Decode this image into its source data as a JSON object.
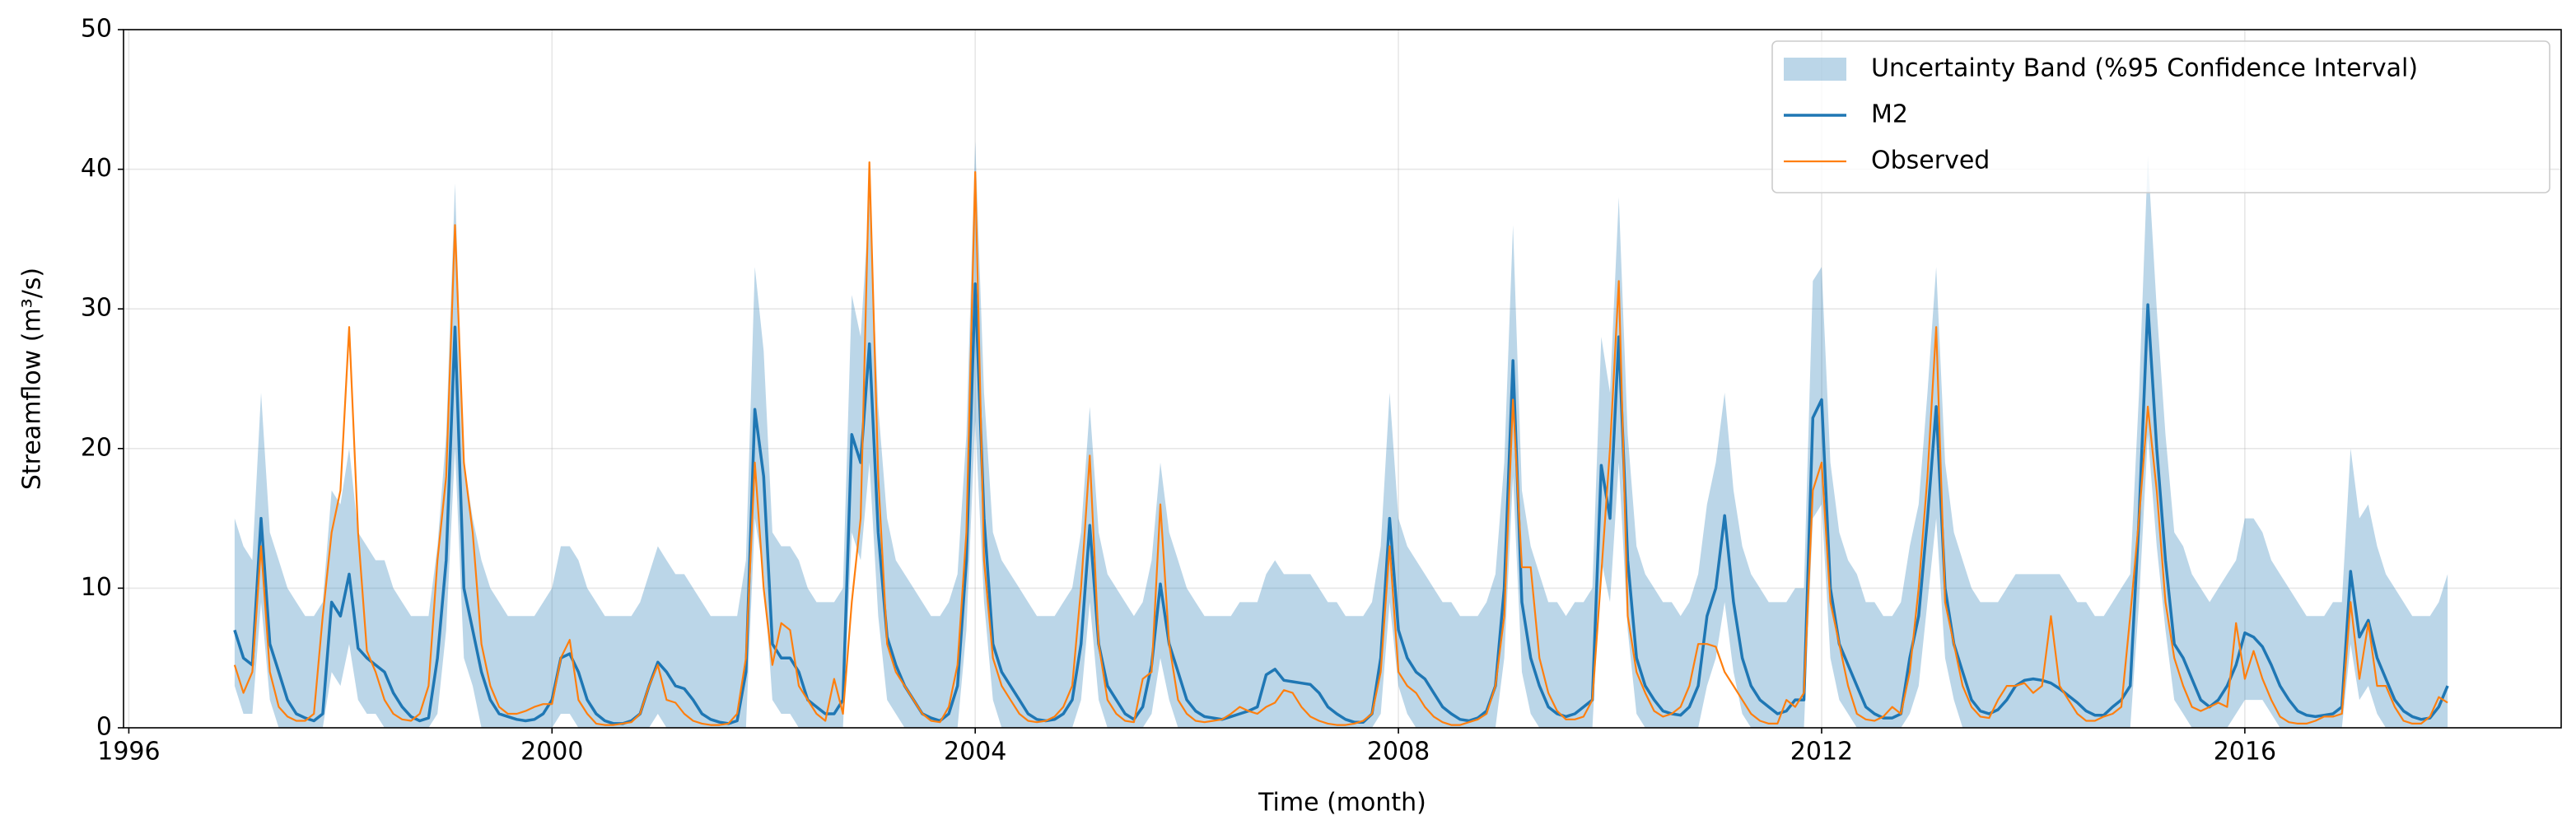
{
  "chart_data": {
    "type": "line",
    "xlabel": "Time (month)",
    "ylabel": "Streamflow (m³/s)",
    "xlim": [
      1995.95,
      2018.99
    ],
    "xticks": [
      1996,
      2000,
      2004,
      2008,
      2012,
      2016
    ],
    "ylim": [
      0,
      50
    ],
    "yticks": [
      0,
      10,
      20,
      30,
      40,
      50
    ],
    "grid": true,
    "legend": "upper right",
    "x": [
      1997,
      1997.083,
      1997.167,
      1997.25,
      1997.333,
      1997.417,
      1997.5,
      1997.583,
      1997.667,
      1997.75,
      1997.833,
      1997.917,
      1998,
      1998.083,
      1998.167,
      1998.25,
      1998.333,
      1998.417,
      1998.5,
      1998.583,
      1998.667,
      1998.75,
      1998.833,
      1998.917,
      1999,
      1999.083,
      1999.167,
      1999.25,
      1999.333,
      1999.417,
      1999.5,
      1999.583,
      1999.667,
      1999.75,
      1999.833,
      1999.917,
      2000,
      2000.083,
      2000.167,
      2000.25,
      2000.333,
      2000.417,
      2000.5,
      2000.583,
      2000.667,
      2000.75,
      2000.833,
      2000.917,
      2001,
      2001.083,
      2001.167,
      2001.25,
      2001.333,
      2001.417,
      2001.5,
      2001.583,
      2001.667,
      2001.75,
      2001.833,
      2001.917,
      2002,
      2002.083,
      2002.167,
      2002.25,
      2002.333,
      2002.417,
      2002.5,
      2002.583,
      2002.667,
      2002.75,
      2002.833,
      2002.917,
      2003,
      2003.083,
      2003.167,
      2003.25,
      2003.333,
      2003.417,
      2003.5,
      2003.583,
      2003.667,
      2003.75,
      2003.833,
      2003.917,
      2004,
      2004.083,
      2004.167,
      2004.25,
      2004.333,
      2004.417,
      2004.5,
      2004.583,
      2004.667,
      2004.75,
      2004.833,
      2004.917,
      2005,
      2005.083,
      2005.167,
      2005.25,
      2005.333,
      2005.417,
      2005.5,
      2005.583,
      2005.667,
      2005.75,
      2005.833,
      2005.917,
      2006,
      2006.083,
      2006.167,
      2006.25,
      2006.333,
      2006.417,
      2006.5,
      2006.583,
      2006.667,
      2006.75,
      2006.833,
      2006.917,
      2007,
      2007.083,
      2007.167,
      2007.25,
      2007.333,
      2007.417,
      2007.5,
      2007.583,
      2007.667,
      2007.75,
      2007.833,
      2007.917,
      2008,
      2008.083,
      2008.167,
      2008.25,
      2008.333,
      2008.417,
      2008.5,
      2008.583,
      2008.667,
      2008.75,
      2008.833,
      2008.917,
      2009,
      2009.083,
      2009.167,
      2009.25,
      2009.333,
      2009.417,
      2009.5,
      2009.583,
      2009.667,
      2009.75,
      2009.833,
      2009.917,
      2010,
      2010.083,
      2010.167,
      2010.25,
      2010.333,
      2010.417,
      2010.5,
      2010.583,
      2010.667,
      2010.75,
      2010.833,
      2010.917,
      2011,
      2011.083,
      2011.167,
      2011.25,
      2011.333,
      2011.417,
      2011.5,
      2011.583,
      2011.667,
      2011.75,
      2011.833,
      2011.917,
      2012,
      2012.083,
      2012.167,
      2012.25,
      2012.333,
      2012.417,
      2012.5,
      2012.583,
      2012.667,
      2012.75,
      2012.833,
      2012.917,
      2013,
      2013.083,
      2013.167,
      2013.25,
      2013.333,
      2013.417,
      2013.5,
      2013.583,
      2013.667,
      2013.75,
      2013.833,
      2013.917,
      2014,
      2014.083,
      2014.167,
      2014.25,
      2014.333,
      2014.417,
      2014.5,
      2014.583,
      2014.667,
      2014.75,
      2014.833,
      2014.917,
      2015,
      2015.083,
      2015.167,
      2015.25,
      2015.333,
      2015.417,
      2015.5,
      2015.583,
      2015.667,
      2015.75,
      2015.833,
      2015.917,
      2016,
      2016.083,
      2016.167,
      2016.25,
      2016.333,
      2016.417,
      2016.5,
      2016.583,
      2016.667,
      2016.75,
      2016.833,
      2016.917,
      2017,
      2017.083,
      2017.167,
      2017.25,
      2017.333,
      2017.417,
      2017.5,
      2017.583,
      2017.667,
      2017.75,
      2017.833,
      2017.917
    ],
    "band": {
      "name": "Uncertainty Band (%95 Confidence Interval)",
      "color": "#1f77b4",
      "upper": [
        15,
        13,
        12,
        24,
        14,
        12,
        10,
        9,
        8,
        8,
        9,
        17,
        16,
        20,
        14,
        13,
        12,
        12,
        10,
        9,
        8,
        8,
        8,
        13,
        21,
        39,
        19,
        15,
        12,
        10,
        9,
        8,
        8,
        8,
        8,
        9,
        10,
        13,
        13,
        12,
        10,
        9,
        8,
        8,
        8,
        8,
        9,
        11,
        13,
        12,
        11,
        11,
        10,
        9,
        8,
        8,
        8,
        8,
        12,
        33,
        27,
        14,
        13,
        13,
        12,
        10,
        9,
        9,
        9,
        10,
        31,
        28,
        38,
        23,
        15,
        12,
        11,
        10,
        9,
        8,
        8,
        9,
        11,
        21,
        42,
        24,
        14,
        12,
        11,
        10,
        9,
        8,
        8,
        8,
        9,
        10,
        14,
        23,
        14,
        11,
        10,
        9,
        8,
        9,
        12,
        19,
        14,
        12,
        10,
        9,
        8,
        8,
        8,
        8,
        9,
        9,
        9,
        11,
        12,
        11,
        11,
        11,
        11,
        10,
        9,
        9,
        8,
        8,
        8,
        9,
        13,
        24,
        15,
        13,
        12,
        11,
        10,
        9,
        9,
        8,
        8,
        8,
        9,
        11,
        19,
        36,
        17,
        13,
        11,
        9,
        9,
        8,
        9,
        9,
        10,
        28,
        24,
        38,
        21,
        13,
        11,
        10,
        9,
        9,
        8,
        9,
        11,
        16,
        19,
        24,
        17,
        13,
        11,
        10,
        9,
        9,
        9,
        10,
        10,
        32,
        33,
        19,
        14,
        12,
        11,
        9,
        9,
        8,
        8,
        9,
        13,
        16,
        24,
        33,
        19,
        14,
        12,
        10,
        9,
        9,
        9,
        10,
        11,
        11,
        11,
        11,
        11,
        11,
        10,
        9,
        9,
        8,
        8,
        9,
        10,
        11,
        24,
        41,
        30,
        21,
        14,
        13,
        11,
        10,
        9,
        10,
        11,
        12,
        15,
        15,
        14,
        12,
        11,
        10,
        9,
        8,
        8,
        8,
        9,
        9,
        20,
        15,
        16,
        13,
        11,
        10,
        9,
        8,
        8,
        8,
        9,
        11
      ],
      "lower": [
        3,
        1,
        1,
        9,
        2,
        0,
        0,
        0,
        0,
        0,
        0,
        4,
        3,
        6,
        2,
        1,
        1,
        0,
        0,
        0,
        0,
        0,
        0,
        1,
        7,
        20,
        5,
        3,
        0,
        0,
        0,
        0,
        0,
        0,
        0,
        0,
        0,
        1,
        1,
        0,
        0,
        0,
        0,
        0,
        0,
        0,
        0,
        0,
        1,
        0,
        0,
        0,
        0,
        0,
        0,
        0,
        0,
        0,
        0,
        15,
        11,
        2,
        1,
        1,
        0,
        0,
        0,
        0,
        0,
        0,
        14,
        12,
        19,
        8,
        2,
        1,
        0,
        0,
        0,
        0,
        0,
        0,
        0,
        7,
        22,
        9,
        2,
        0,
        0,
        0,
        0,
        0,
        0,
        0,
        0,
        0,
        2,
        9,
        2,
        0,
        0,
        0,
        0,
        0,
        1,
        5,
        2,
        0,
        0,
        0,
        0,
        0,
        0,
        0,
        0,
        0,
        0,
        0,
        0,
        0,
        0,
        0,
        0,
        0,
        0,
        0,
        0,
        0,
        0,
        0,
        1,
        9,
        3,
        1,
        0,
        0,
        0,
        0,
        0,
        0,
        0,
        0,
        0,
        0,
        5,
        18,
        4,
        1,
        0,
        0,
        0,
        0,
        0,
        0,
        0,
        12,
        9,
        19,
        7,
        1,
        0,
        0,
        0,
        0,
        0,
        0,
        0,
        3,
        5,
        9,
        4,
        1,
        0,
        0,
        0,
        0,
        0,
        0,
        0,
        15,
        16,
        5,
        2,
        1,
        0,
        0,
        0,
        0,
        0,
        0,
        1,
        3,
        9,
        15,
        5,
        2,
        0,
        0,
        0,
        0,
        0,
        0,
        0,
        0,
        0,
        0,
        0,
        0,
        0,
        0,
        0,
        0,
        0,
        0,
        0,
        0,
        9,
        21,
        13,
        7,
        2,
        1,
        0,
        0,
        0,
        0,
        0,
        1,
        2,
        2,
        2,
        1,
        0,
        0,
        0,
        0,
        0,
        0,
        0,
        0,
        6,
        2,
        3,
        1,
        0,
        0,
        0,
        0,
        0,
        0,
        0,
        0
      ]
    },
    "series": [
      {
        "name": "M2",
        "color": "#1f77b4",
        "values": [
          7,
          5,
          4.5,
          15,
          6,
          4,
          2,
          1,
          0.7,
          0.5,
          1,
          9,
          8,
          11,
          5.7,
          5,
          4.5,
          4,
          2.5,
          1.5,
          0.8,
          0.5,
          0.7,
          5,
          12,
          28.7,
          10,
          7,
          4,
          2,
          1,
          0.8,
          0.6,
          0.5,
          0.6,
          1,
          2,
          5,
          5.3,
          4,
          2,
          1,
          0.5,
          0.3,
          0.3,
          0.5,
          1,
          3,
          4.7,
          4,
          3,
          2.8,
          2,
          1,
          0.6,
          0.4,
          0.3,
          0.5,
          4,
          22.8,
          18,
          6,
          5,
          5,
          4,
          2,
          1.5,
          1,
          1,
          2,
          21,
          19,
          27.5,
          14,
          6.5,
          4.5,
          3,
          2,
          1,
          0.7,
          0.5,
          1,
          3,
          12,
          31.8,
          15,
          6,
          4,
          3,
          2,
          1,
          0.6,
          0.5,
          0.6,
          1,
          2,
          6,
          14.5,
          6,
          3,
          2,
          1,
          0.6,
          1.5,
          4.5,
          10.3,
          6,
          4,
          2,
          1.2,
          0.8,
          0.7,
          0.6,
          0.8,
          1,
          1.2,
          1.5,
          3.8,
          4.2,
          3.4,
          3.3,
          3.2,
          3.1,
          2.5,
          1.5,
          1,
          0.6,
          0.4,
          0.4,
          1,
          5,
          15,
          7,
          5,
          4,
          3.5,
          2.5,
          1.5,
          1,
          0.6,
          0.5,
          0.7,
          1.2,
          3,
          10,
          26.3,
          9,
          5,
          3,
          1.5,
          1,
          0.8,
          1,
          1.5,
          2,
          18.8,
          15,
          28,
          12,
          5,
          3,
          2,
          1.2,
          1,
          0.9,
          1.5,
          3,
          8,
          10,
          15.2,
          9,
          5,
          3,
          2,
          1.5,
          1,
          1.2,
          2,
          2,
          22.2,
          23.5,
          10,
          6,
          4.5,
          3,
          1.5,
          1,
          0.7,
          0.7,
          1,
          5,
          8,
          15,
          23,
          10,
          6,
          4,
          2,
          1.2,
          1,
          1.3,
          2,
          3,
          3.4,
          3.5,
          3.4,
          3.2,
          2.8,
          2.3,
          1.8,
          1.2,
          0.9,
          0.9,
          1.5,
          2,
          3,
          15,
          30.3,
          20,
          12,
          6,
          5,
          3.5,
          2,
          1.5,
          2,
          3,
          4.5,
          6.8,
          6.5,
          5.8,
          4.5,
          3,
          2,
          1.2,
          0.9,
          0.8,
          0.9,
          1,
          1.5,
          11.2,
          6.5,
          7.7,
          5,
          3.5,
          2,
          1.2,
          0.8,
          0.6,
          0.7,
          1.5,
          3
        ]
      },
      {
        "name": "Observed",
        "color": "#ff7f0e",
        "values": [
          4.5,
          2.5,
          4,
          13,
          4,
          1.5,
          0.8,
          0.5,
          0.5,
          1,
          8,
          14,
          17,
          28.7,
          14,
          5.5,
          4,
          2,
          1,
          0.6,
          0.5,
          1,
          3,
          12,
          18,
          36,
          19,
          14,
          6,
          3,
          1.5,
          1,
          1,
          1.2,
          1.5,
          1.7,
          1.7,
          5,
          6.3,
          2,
          1,
          0.3,
          0.2,
          0.2,
          0.3,
          0.4,
          1,
          3,
          4.5,
          2,
          1.8,
          1,
          0.5,
          0.3,
          0.2,
          0.2,
          0.3,
          1,
          5,
          19,
          10,
          4.5,
          7.5,
          7,
          3,
          2,
          1,
          0.5,
          3.5,
          1,
          9,
          15,
          40.5,
          18,
          6,
          4,
          3,
          2,
          1,
          0.5,
          0.4,
          1.5,
          4.5,
          14,
          39.8,
          12,
          5,
          3,
          2,
          1,
          0.5,
          0.4,
          0.5,
          0.8,
          1.5,
          3,
          10,
          19.5,
          6,
          2,
          1,
          0.5,
          0.4,
          3.5,
          4,
          16,
          6,
          2,
          1,
          0.5,
          0.4,
          0.5,
          0.6,
          1,
          1.5,
          1.2,
          1,
          1.5,
          1.8,
          2.7,
          2.5,
          1.5,
          0.8,
          0.5,
          0.3,
          0.2,
          0.2,
          0.3,
          0.5,
          1,
          4,
          13,
          4,
          3,
          2.5,
          1.5,
          0.8,
          0.4,
          0.2,
          0.2,
          0.4,
          0.6,
          1,
          3,
          8,
          23.5,
          11.5,
          11.5,
          5,
          2.5,
          1.2,
          0.6,
          0.6,
          0.8,
          2,
          11,
          20,
          32,
          8,
          4,
          2.5,
          1.2,
          0.8,
          1,
          1.5,
          3,
          6,
          6,
          5.8,
          4,
          3,
          2,
          1,
          0.5,
          0.3,
          0.3,
          2,
          1.5,
          2.5,
          17,
          19,
          9,
          6,
          3,
          1,
          0.6,
          0.5,
          0.8,
          1.5,
          1,
          4,
          10,
          18,
          28.7,
          9,
          6,
          3,
          1.5,
          0.8,
          0.7,
          2,
          3,
          3,
          3.2,
          2.5,
          3,
          8,
          3,
          2,
          1,
          0.5,
          0.5,
          0.8,
          1,
          1.5,
          8,
          15,
          23,
          17,
          9,
          5,
          3,
          1.5,
          1.2,
          1.5,
          1.8,
          1.5,
          7.5,
          3.5,
          5.5,
          3.5,
          2,
          0.8,
          0.4,
          0.3,
          0.3,
          0.5,
          0.8,
          0.8,
          1,
          9,
          3.5,
          7.5,
          3,
          3,
          1.5,
          0.5,
          0.3,
          0.3,
          0.8,
          2.2,
          1.8
        ]
      }
    ]
  }
}
